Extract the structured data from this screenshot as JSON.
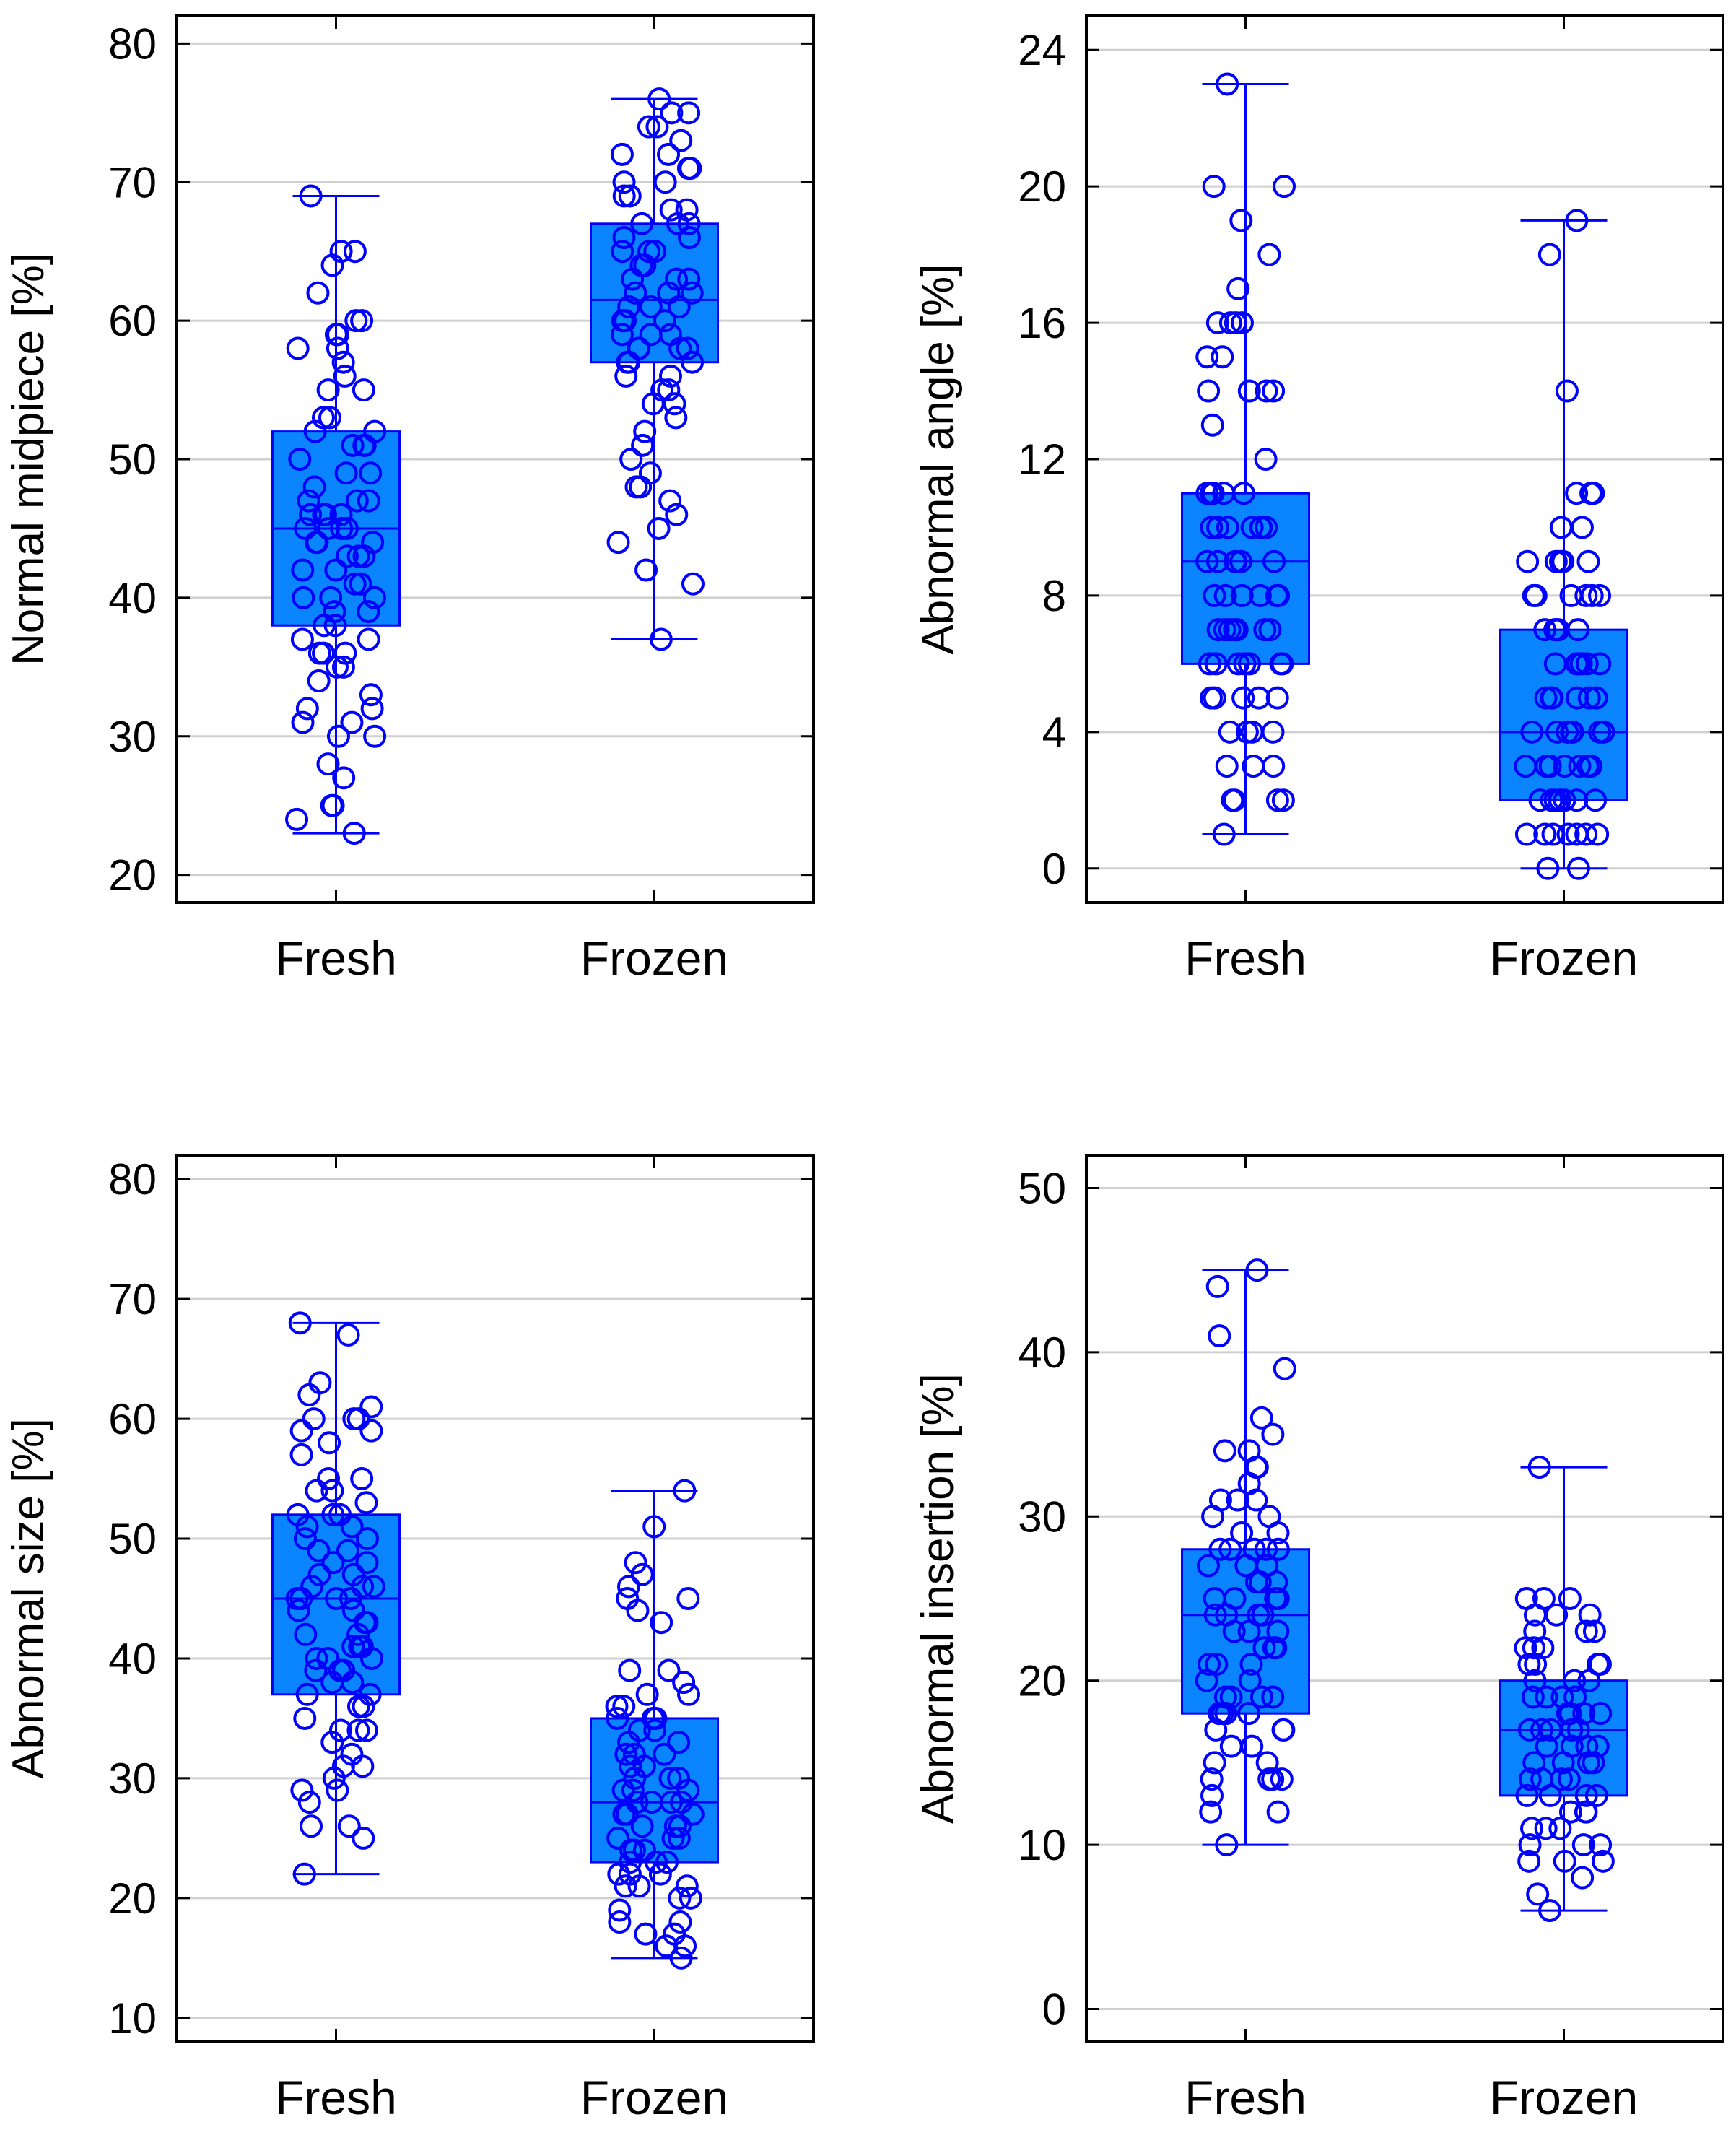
{
  "colors": {
    "box_fill": "#0A84FF",
    "marker": "#0000FF",
    "grid": "#D0D0D0",
    "frame": "#000000"
  },
  "chart_data": [
    {
      "type": "box",
      "ylabel": "Normal midpiece [%]",
      "categories": [
        "Fresh",
        "Frozen"
      ],
      "ylim": [
        18,
        82
      ],
      "yticks": [
        20,
        30,
        40,
        50,
        60,
        70,
        80
      ],
      "grid": true,
      "boxes": [
        {
          "category": "Fresh",
          "min": 23,
          "q1": 38,
          "median": 45,
          "q3": 52,
          "max": 69,
          "points": [
            69,
            65,
            65,
            64,
            62,
            60,
            60,
            59,
            59,
            58,
            58,
            57,
            56,
            55,
            55,
            53,
            53,
            52,
            52,
            51,
            51,
            51,
            50,
            49,
            49,
            48,
            47,
            47,
            47,
            46,
            46,
            46,
            46,
            45,
            45,
            45,
            45,
            44,
            44,
            44,
            43,
            43,
            43,
            42,
            42,
            41,
            41,
            40,
            40,
            40,
            39,
            39,
            38,
            38,
            37,
            37,
            36,
            36,
            36,
            35,
            35,
            34,
            33,
            32,
            32,
            31,
            31,
            30,
            30,
            28,
            27,
            25,
            25,
            24,
            23
          ]
        },
        {
          "category": "Frozen",
          "min": 37,
          "q1": 57,
          "median": 61.5,
          "q3": 67,
          "max": 76,
          "points": [
            76,
            75,
            75,
            74,
            74,
            73,
            72,
            72,
            71,
            71,
            70,
            70,
            69,
            69,
            68,
            68,
            67,
            67,
            67,
            66,
            66,
            65,
            65,
            65,
            64,
            64,
            63,
            63,
            63,
            62,
            62,
            62,
            61,
            61,
            61,
            60,
            60,
            60,
            59,
            59,
            59,
            58,
            58,
            58,
            58,
            57,
            57,
            57,
            56,
            56,
            55,
            55,
            54,
            54,
            53,
            52,
            51,
            50,
            49,
            48,
            48,
            47,
            46,
            45,
            44,
            42,
            41,
            37
          ]
        }
      ]
    },
    {
      "type": "box",
      "ylabel": "Abnormal angle [%]",
      "categories": [
        "Fresh",
        "Frozen"
      ],
      "ylim": [
        -1,
        25
      ],
      "yticks": [
        0,
        4,
        8,
        12,
        16,
        20,
        24
      ],
      "grid": true,
      "boxes": [
        {
          "category": "Fresh",
          "min": 1,
          "q1": 6,
          "median": 9,
          "q3": 11,
          "max": 23,
          "points": [
            23,
            20,
            20,
            19,
            18,
            17,
            16,
            16,
            16,
            16,
            15,
            15,
            14,
            14,
            14,
            14,
            13,
            12,
            11,
            11,
            11,
            11,
            11,
            10,
            10,
            10,
            10,
            10,
            10,
            10,
            9,
            9,
            9,
            9,
            9,
            9,
            8,
            8,
            8,
            8,
            8,
            8,
            7,
            7,
            7,
            7,
            7,
            7,
            7,
            6,
            6,
            6,
            6,
            6,
            6,
            6,
            5,
            5,
            5,
            5,
            5,
            4,
            4,
            4,
            4,
            3,
            3,
            3,
            2,
            2,
            2,
            2,
            1
          ]
        },
        {
          "category": "Frozen",
          "min": 0,
          "q1": 2,
          "median": 4,
          "q3": 7,
          "max": 19,
          "points": [
            19,
            18,
            14,
            11,
            11,
            11,
            10,
            10,
            10,
            9,
            9,
            9,
            9,
            9,
            8,
            8,
            8,
            8,
            8,
            8,
            7,
            7,
            7,
            7,
            7,
            6,
            6,
            6,
            6,
            6,
            6,
            5,
            5,
            5,
            5,
            5,
            5,
            5,
            4,
            4,
            4,
            4,
            4,
            4,
            4,
            3,
            3,
            3,
            3,
            3,
            3,
            3,
            2,
            2,
            2,
            2,
            2,
            2,
            2,
            1,
            1,
            1,
            1,
            1,
            1,
            1,
            0,
            0
          ]
        }
      ]
    },
    {
      "type": "box",
      "ylabel": "Abnormal size [%]",
      "categories": [
        "Fresh",
        "Frozen"
      ],
      "ylim": [
        8,
        82
      ],
      "yticks": [
        10,
        20,
        30,
        40,
        50,
        60,
        70,
        80
      ],
      "grid": true,
      "boxes": [
        {
          "category": "Fresh",
          "min": 22,
          "q1": 37,
          "median": 45,
          "q3": 52,
          "max": 68,
          "points": [
            68,
            67,
            63,
            62,
            61,
            60,
            60,
            60,
            59,
            59,
            58,
            57,
            55,
            55,
            54,
            54,
            53,
            52,
            52,
            52,
            51,
            51,
            50,
            50,
            49,
            49,
            48,
            48,
            47,
            47,
            46,
            46,
            46,
            45,
            45,
            45,
            45,
            44,
            44,
            43,
            43,
            42,
            42,
            41,
            41,
            41,
            40,
            40,
            40,
            39,
            39,
            39,
            38,
            38,
            37,
            37,
            36,
            36,
            35,
            34,
            34,
            34,
            33,
            32,
            31,
            31,
            30,
            29,
            29,
            28,
            26,
            26,
            25,
            22
          ]
        },
        {
          "category": "Frozen",
          "min": 15,
          "q1": 23,
          "median": 28,
          "q3": 35,
          "max": 54,
          "points": [
            54,
            51,
            48,
            47,
            46,
            45,
            45,
            44,
            43,
            39,
            39,
            38,
            37,
            37,
            36,
            36,
            35,
            35,
            35,
            34,
            34,
            33,
            33,
            32,
            32,
            32,
            31,
            31,
            31,
            30,
            30,
            30,
            29,
            29,
            29,
            28,
            28,
            28,
            28,
            27,
            27,
            27,
            26,
            26,
            26,
            25,
            25,
            25,
            24,
            24,
            24,
            23,
            23,
            23,
            22,
            22,
            22,
            21,
            21,
            21,
            20,
            20,
            19,
            18,
            18,
            17,
            17,
            16,
            16,
            15
          ]
        }
      ]
    },
    {
      "type": "box",
      "ylabel": "Abnormal insertion [%]",
      "categories": [
        "Fresh",
        "Frozen"
      ],
      "ylim": [
        -2,
        52
      ],
      "yticks": [
        0,
        10,
        20,
        30,
        40,
        50
      ],
      "grid": true,
      "boxes": [
        {
          "category": "Fresh",
          "min": 10,
          "q1": 18,
          "median": 24,
          "q3": 28,
          "max": 45,
          "points": [
            45,
            44,
            41,
            39,
            36,
            35,
            34,
            34,
            33,
            33,
            32,
            31,
            31,
            31,
            30,
            30,
            29,
            29,
            28,
            28,
            28,
            28,
            28,
            27,
            27,
            27,
            26,
            26,
            26,
            25,
            25,
            25,
            25,
            24,
            24,
            24,
            24,
            23,
            23,
            23,
            22,
            22,
            22,
            21,
            21,
            21,
            20,
            20,
            19,
            19,
            19,
            19,
            18,
            18,
            18,
            18,
            17,
            17,
            17,
            16,
            16,
            15,
            15,
            14,
            14,
            14,
            14,
            13,
            12,
            12,
            10
          ]
        },
        {
          "category": "Frozen",
          "min": 6,
          "q1": 13,
          "median": 17,
          "q3": 20,
          "max": 33,
          "points": [
            33,
            25,
            25,
            25,
            24,
            24,
            24,
            23,
            23,
            23,
            22,
            22,
            22,
            21,
            21,
            21,
            21,
            20,
            20,
            20,
            19,
            19,
            19,
            19,
            18,
            18,
            18,
            18,
            17,
            17,
            17,
            17,
            17,
            16,
            16,
            16,
            16,
            15,
            15,
            15,
            15,
            14,
            14,
            14,
            14,
            13,
            13,
            13,
            13,
            12,
            12,
            12,
            11,
            11,
            11,
            10,
            10,
            10,
            9,
            9,
            9,
            8,
            7,
            6
          ]
        }
      ]
    }
  ]
}
